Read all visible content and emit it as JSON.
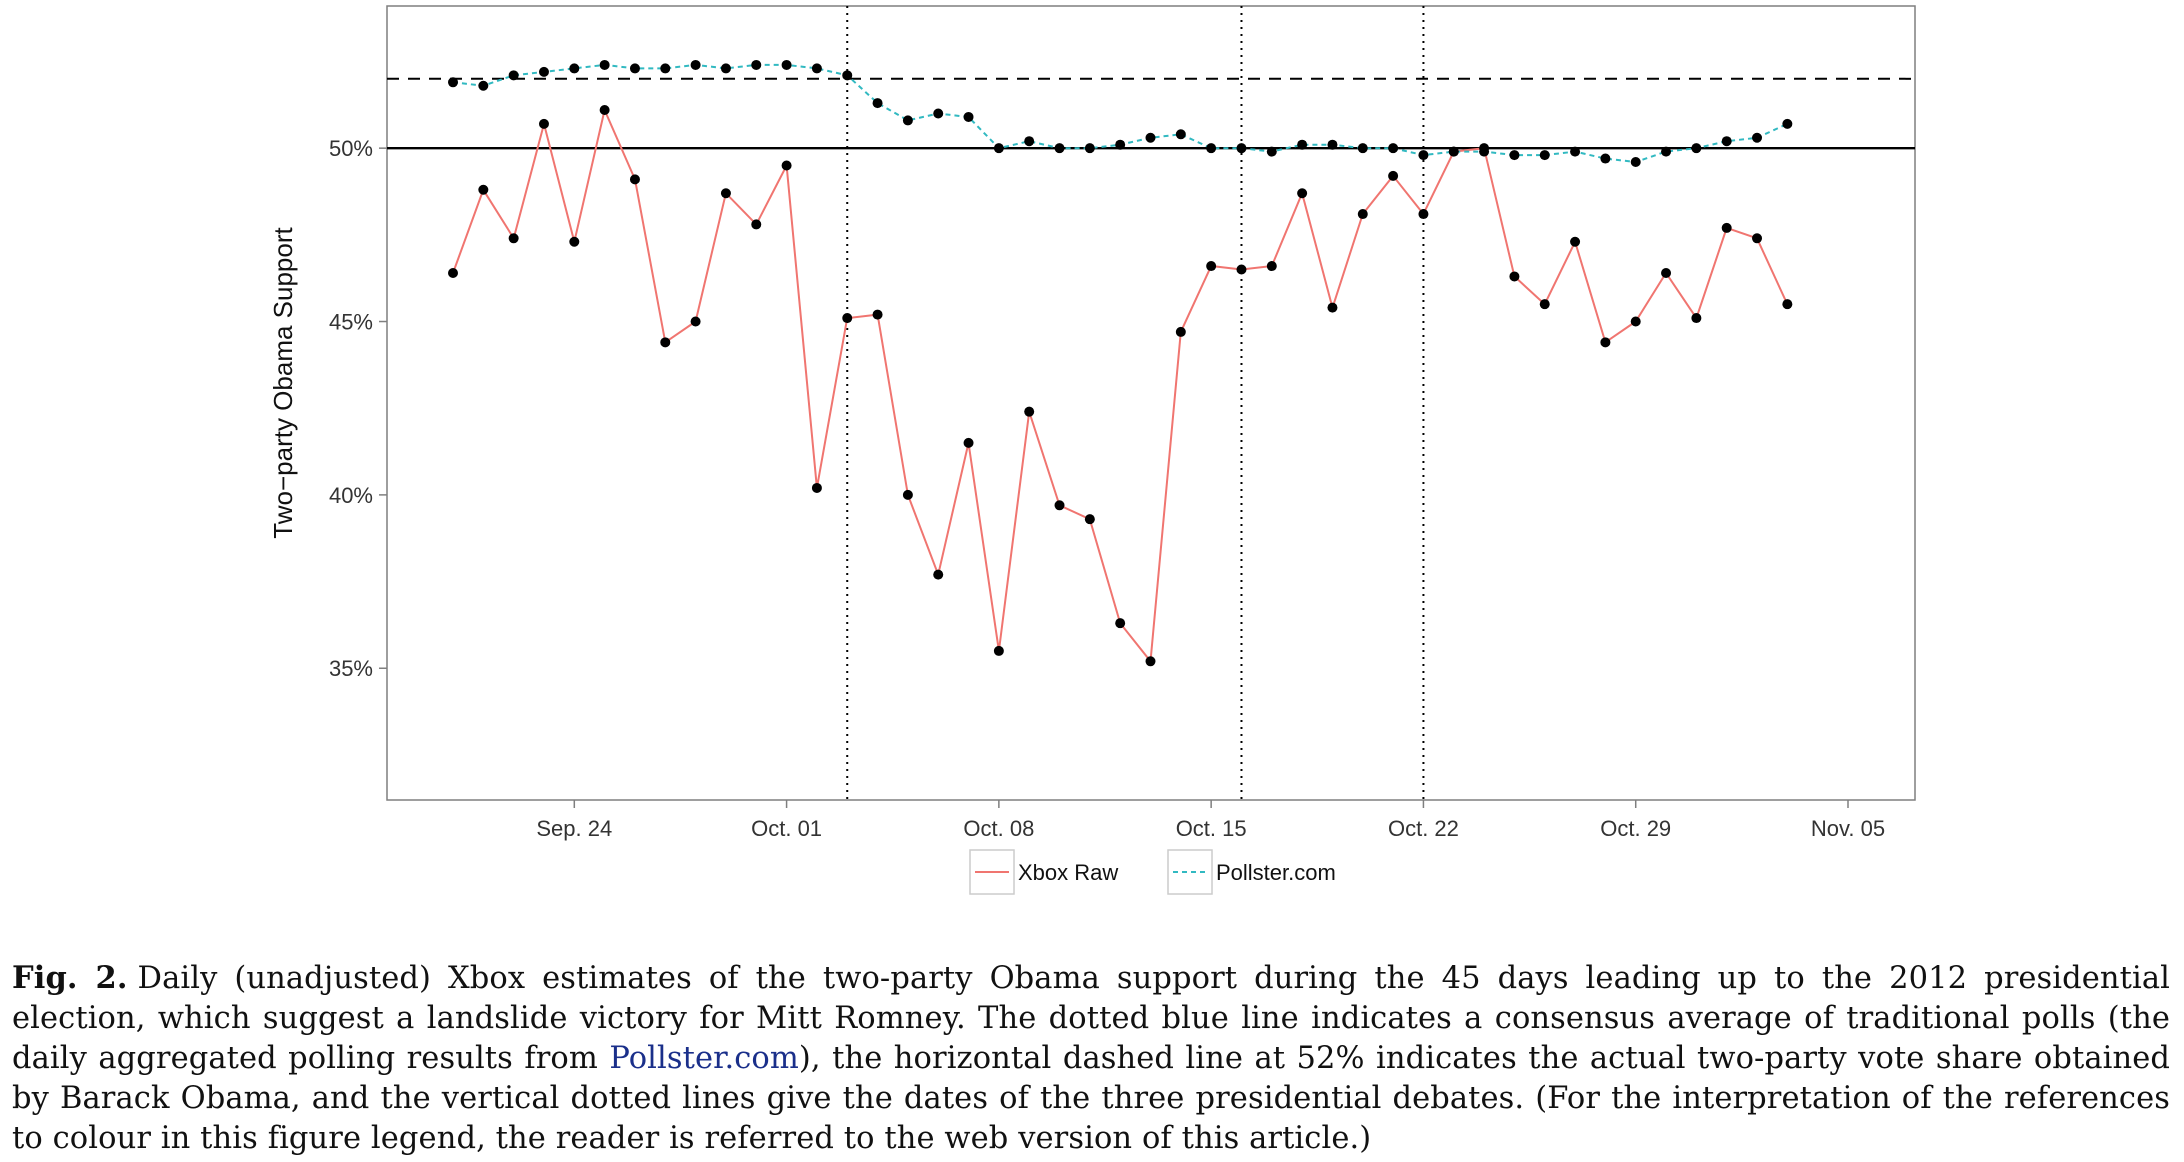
{
  "chart_data": {
    "type": "line",
    "ylabel": "Two−party Obama Support",
    "xlabel": "",
    "x_ticks": [
      "Sep. 24",
      "Oct. 01",
      "Oct. 08",
      "Oct. 15",
      "Oct. 22",
      "Oct. 29",
      "Nov. 05"
    ],
    "y_ticks": [
      "35%",
      "40%",
      "45%",
      "50%"
    ],
    "y_tick_values": [
      35,
      40,
      45,
      50
    ],
    "ylim": [
      31.2,
      54.1
    ],
    "x_start": "2012-09-20",
    "x_end": "2012-11-05",
    "grid": false,
    "legend_position": "bottom",
    "reference_lines": {
      "horizontal_solid": 50,
      "horizontal_dashed": 52,
      "vertical_dotted_dates": [
        "2012-10-03",
        "2012-10-16",
        "2012-10-22"
      ]
    },
    "series": [
      {
        "name": "Xbox Raw",
        "color": "#f07570",
        "style": "solid",
        "points": [
          [
            "2012-09-20",
            46.4
          ],
          [
            "2012-09-21",
            48.8
          ],
          [
            "2012-09-22",
            47.4
          ],
          [
            "2012-09-23",
            50.7
          ],
          [
            "2012-09-24",
            47.3
          ],
          [
            "2012-09-25",
            51.1
          ],
          [
            "2012-09-26",
            49.1
          ],
          [
            "2012-09-27",
            44.4
          ],
          [
            "2012-09-28",
            45.0
          ],
          [
            "2012-09-29",
            48.7
          ],
          [
            "2012-09-30",
            47.8
          ],
          [
            "2012-10-01",
            49.5
          ],
          [
            "2012-10-02",
            40.2
          ],
          [
            "2012-10-03",
            45.1
          ],
          [
            "2012-10-04",
            45.2
          ],
          [
            "2012-10-05",
            40.0
          ],
          [
            "2012-10-06",
            37.7
          ],
          [
            "2012-10-07",
            41.5
          ],
          [
            "2012-10-08",
            35.5
          ],
          [
            "2012-10-09",
            42.4
          ],
          [
            "2012-10-10",
            39.7
          ],
          [
            "2012-10-11",
            39.3
          ],
          [
            "2012-10-12",
            36.3
          ],
          [
            "2012-10-13",
            35.2
          ],
          [
            "2012-10-14",
            44.7
          ],
          [
            "2012-10-15",
            46.6
          ],
          [
            "2012-10-16",
            46.5
          ],
          [
            "2012-10-17",
            46.6
          ],
          [
            "2012-10-18",
            48.7
          ],
          [
            "2012-10-19",
            45.4
          ],
          [
            "2012-10-20",
            48.1
          ],
          [
            "2012-10-21",
            49.2
          ],
          [
            "2012-10-22",
            48.1
          ],
          [
            "2012-10-23",
            49.9
          ],
          [
            "2012-10-24",
            50.0
          ],
          [
            "2012-10-25",
            46.3
          ],
          [
            "2012-10-26",
            45.5
          ],
          [
            "2012-10-27",
            47.3
          ],
          [
            "2012-10-28",
            44.4
          ],
          [
            "2012-10-29",
            45.0
          ],
          [
            "2012-10-30",
            46.4
          ],
          [
            "2012-10-31",
            45.1
          ],
          [
            "2012-11-01",
            47.7
          ],
          [
            "2012-11-02",
            47.4
          ],
          [
            "2012-11-03",
            45.5
          ]
        ]
      },
      {
        "name": "Pollster.com",
        "color": "#31b9c1",
        "style": "dashed",
        "points": [
          [
            "2012-09-20",
            51.9
          ],
          [
            "2012-09-21",
            51.8
          ],
          [
            "2012-09-22",
            52.1
          ],
          [
            "2012-09-23",
            52.2
          ],
          [
            "2012-09-24",
            52.3
          ],
          [
            "2012-09-25",
            52.4
          ],
          [
            "2012-09-26",
            52.3
          ],
          [
            "2012-09-27",
            52.3
          ],
          [
            "2012-09-28",
            52.4
          ],
          [
            "2012-09-29",
            52.3
          ],
          [
            "2012-09-30",
            52.4
          ],
          [
            "2012-10-01",
            52.4
          ],
          [
            "2012-10-02",
            52.3
          ],
          [
            "2012-10-03",
            52.1
          ],
          [
            "2012-10-04",
            51.3
          ],
          [
            "2012-10-05",
            50.8
          ],
          [
            "2012-10-06",
            51.0
          ],
          [
            "2012-10-07",
            50.9
          ],
          [
            "2012-10-08",
            50.0
          ],
          [
            "2012-10-09",
            50.2
          ],
          [
            "2012-10-10",
            50.0
          ],
          [
            "2012-10-11",
            50.0
          ],
          [
            "2012-10-12",
            50.1
          ],
          [
            "2012-10-13",
            50.3
          ],
          [
            "2012-10-14",
            50.4
          ],
          [
            "2012-10-15",
            50.0
          ],
          [
            "2012-10-16",
            50.0
          ],
          [
            "2012-10-17",
            49.9
          ],
          [
            "2012-10-18",
            50.1
          ],
          [
            "2012-10-19",
            50.1
          ],
          [
            "2012-10-20",
            50.0
          ],
          [
            "2012-10-21",
            50.0
          ],
          [
            "2012-10-22",
            49.8
          ],
          [
            "2012-10-23",
            49.9
          ],
          [
            "2012-10-24",
            49.9
          ],
          [
            "2012-10-25",
            49.8
          ],
          [
            "2012-10-26",
            49.8
          ],
          [
            "2012-10-27",
            49.9
          ],
          [
            "2012-10-28",
            49.7
          ],
          [
            "2012-10-29",
            49.6
          ],
          [
            "2012-10-30",
            49.9
          ],
          [
            "2012-10-31",
            50.0
          ],
          [
            "2012-11-01",
            50.2
          ],
          [
            "2012-11-02",
            50.3
          ],
          [
            "2012-11-03",
            50.7
          ]
        ]
      }
    ]
  },
  "caption": {
    "label": "Fig. 2.",
    "text_before_link": "Daily (unadjusted) Xbox estimates of the two-party Obama support during the 45 days leading up to the 2012 presidential election, which suggest a landslide victory for Mitt Romney. The dotted blue line indicates a consensus average of traditional polls (the daily aggregated polling results from ",
    "link_text": "Pollster.com",
    "text_after_link": "), the horizontal dashed line at 52% indicates the actual two-party vote share obtained by Barack Obama, and the vertical dotted lines give the dates of the three presidential debates. (For the interpretation of the references to colour in this figure legend, the reader is referred to the web version of this article.)"
  }
}
